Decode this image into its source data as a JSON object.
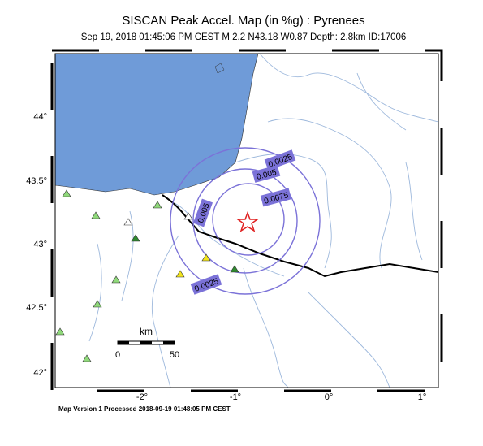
{
  "header": {
    "title": "SISCAN Peak Accel. Map (in %g) : Pyrenees",
    "subtitle": "Sep 19, 2018 01:45:06 PM CEST   M 2.2   N43.18 W0.87   Depth: 2.8km   ID:17006"
  },
  "axes": {
    "x_labels": [
      "-2°",
      "-1°",
      "0°",
      "1°"
    ],
    "y_labels": [
      "44°",
      "43.5°",
      "43°",
      "42.5°",
      "42°"
    ]
  },
  "contours": {
    "labels": [
      "0.0025",
      "0.005",
      "0.0075",
      "0.005",
      "0.0025"
    ]
  },
  "scale_bar": {
    "unit": "km",
    "start": "0",
    "end": "50"
  },
  "footer": "Map Version 1 Processed 2018-09-19 01:48:05 PM CEST"
}
